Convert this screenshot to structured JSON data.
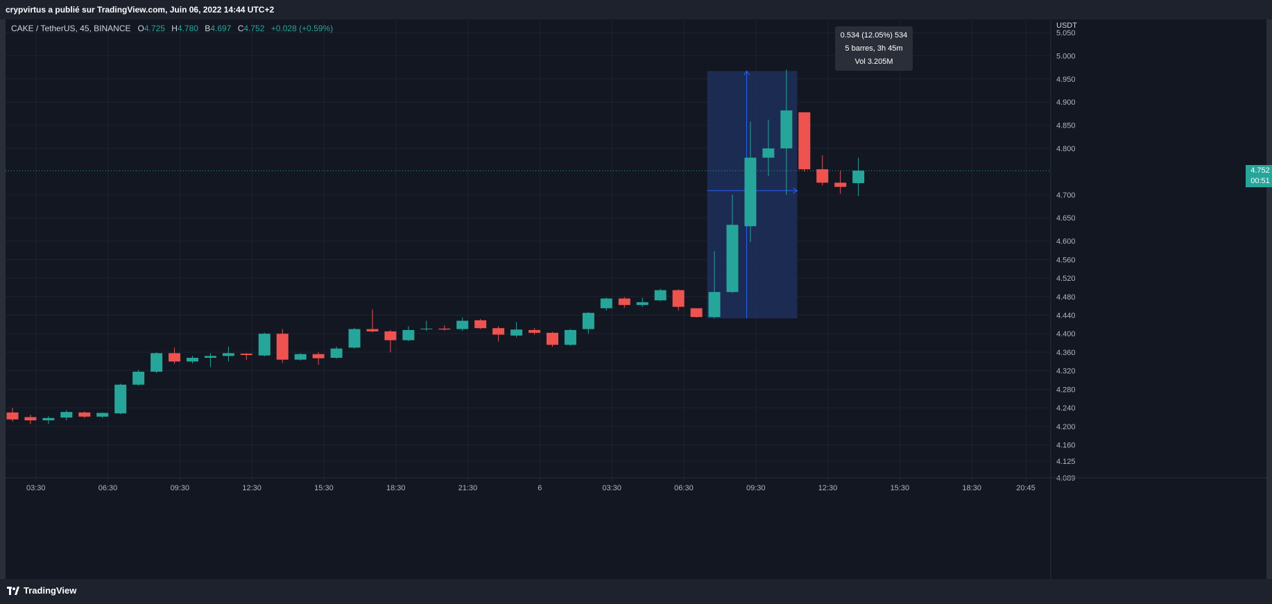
{
  "header": {
    "published_line": "crypvirtus a publié sur TradingView.com, Juin 06, 2022 14:44 UTC+2"
  },
  "legend": {
    "symbol": "CAKE / TetherUS, 45, BINANCE",
    "o_label": "O",
    "o_value": "4.725",
    "h_label": "H",
    "h_value": "4.780",
    "b_label": "B",
    "b_value": "4.697",
    "c_label": "C",
    "c_value": "4.752",
    "change": "+0.028 (+0.59%)"
  },
  "price_axis": {
    "currency": "USDT",
    "current_price": "4.752",
    "countdown": "00:51"
  },
  "measure": {
    "line1": "0.534 (12.05%) 534",
    "line2": "5 barres, 3h 45m",
    "line3": "Vol 3.205M"
  },
  "footer": {
    "brand": "TradingView"
  },
  "colors": {
    "up": "#26a69a",
    "down": "#ef5350",
    "background": "#131722",
    "measure_fill": "#1e2f5a",
    "measure_line": "#2962ff"
  },
  "chart_data": {
    "type": "candlestick",
    "ylim": [
      4.089,
      5.05
    ],
    "y_ticks": [
      5.05,
      5.0,
      4.95,
      4.9,
      4.85,
      4.8,
      4.7,
      4.65,
      4.6,
      4.56,
      4.52,
      4.48,
      4.44,
      4.4,
      4.36,
      4.32,
      4.28,
      4.24,
      4.2,
      4.16,
      4.125,
      4.089
    ],
    "y_tick_labels": [
      "5.050",
      "5.000",
      "4.950",
      "4.900",
      "4.850",
      "4.800",
      "4.700",
      "4.650",
      "4.600",
      "4.560",
      "4.520",
      "4.480",
      "4.440",
      "4.400",
      "4.360",
      "4.320",
      "4.280",
      "4.240",
      "4.200",
      "4.160",
      "4.125",
      "4.089"
    ],
    "x_ticks": [
      {
        "label": "03:30",
        "index": 1.3
      },
      {
        "label": "06:30",
        "index": 5.3
      },
      {
        "label": "09:30",
        "index": 9.3
      },
      {
        "label": "12:30",
        "index": 13.3
      },
      {
        "label": "15:30",
        "index": 17.3
      },
      {
        "label": "18:30",
        "index": 21.3
      },
      {
        "label": "21:30",
        "index": 25.3
      },
      {
        "label": "6",
        "index": 29.3
      },
      {
        "label": "03:30",
        "index": 33.3
      },
      {
        "label": "06:30",
        "index": 37.3
      },
      {
        "label": "09:30",
        "index": 41.3
      },
      {
        "label": "12:30",
        "index": 45.3
      },
      {
        "label": "15:30",
        "index": 49.3
      },
      {
        "label": "18:30",
        "index": 53.3
      },
      {
        "label": "20:45",
        "index": 56.3
      }
    ],
    "candles": [
      {
        "o": 4.23,
        "h": 4.24,
        "l": 4.21,
        "c": 4.215
      },
      {
        "o": 4.22,
        "h": 4.225,
        "l": 4.205,
        "c": 4.213
      },
      {
        "o": 4.213,
        "h": 4.222,
        "l": 4.205,
        "c": 4.218
      },
      {
        "o": 4.219,
        "h": 4.235,
        "l": 4.213,
        "c": 4.231
      },
      {
        "o": 4.23,
        "h": 4.232,
        "l": 4.218,
        "c": 4.221
      },
      {
        "o": 4.221,
        "h": 4.23,
        "l": 4.218,
        "c": 4.229
      },
      {
        "o": 4.228,
        "h": 4.292,
        "l": 4.226,
        "c": 4.29
      },
      {
        "o": 4.29,
        "h": 4.322,
        "l": 4.288,
        "c": 4.318
      },
      {
        "o": 4.318,
        "h": 4.36,
        "l": 4.315,
        "c": 4.358
      },
      {
        "o": 4.358,
        "h": 4.37,
        "l": 4.335,
        "c": 4.34
      },
      {
        "o": 4.34,
        "h": 4.352,
        "l": 4.336,
        "c": 4.348
      },
      {
        "o": 4.348,
        "h": 4.358,
        "l": 4.328,
        "c": 4.352
      },
      {
        "o": 4.352,
        "h": 4.372,
        "l": 4.34,
        "c": 4.358
      },
      {
        "o": 4.357,
        "h": 4.358,
        "l": 4.343,
        "c": 4.354
      },
      {
        "o": 4.353,
        "h": 4.402,
        "l": 4.351,
        "c": 4.4
      },
      {
        "o": 4.4,
        "h": 4.41,
        "l": 4.337,
        "c": 4.344
      },
      {
        "o": 4.344,
        "h": 4.358,
        "l": 4.342,
        "c": 4.356
      },
      {
        "o": 4.356,
        "h": 4.36,
        "l": 4.333,
        "c": 4.347
      },
      {
        "o": 4.348,
        "h": 4.372,
        "l": 4.346,
        "c": 4.368
      },
      {
        "o": 4.37,
        "h": 4.413,
        "l": 4.368,
        "c": 4.41
      },
      {
        "o": 4.41,
        "h": 4.452,
        "l": 4.403,
        "c": 4.405
      },
      {
        "o": 4.405,
        "h": 4.408,
        "l": 4.36,
        "c": 4.386
      },
      {
        "o": 4.386,
        "h": 4.416,
        "l": 4.384,
        "c": 4.408
      },
      {
        "o": 4.41,
        "h": 4.428,
        "l": 4.406,
        "c": 4.411
      },
      {
        "o": 4.411,
        "h": 4.418,
        "l": 4.407,
        "c": 4.409
      },
      {
        "o": 4.41,
        "h": 4.435,
        "l": 4.406,
        "c": 4.428
      },
      {
        "o": 4.429,
        "h": 4.432,
        "l": 4.41,
        "c": 4.412
      },
      {
        "o": 4.412,
        "h": 4.416,
        "l": 4.383,
        "c": 4.398
      },
      {
        "o": 4.396,
        "h": 4.425,
        "l": 4.392,
        "c": 4.409
      },
      {
        "o": 4.408,
        "h": 4.412,
        "l": 4.398,
        "c": 4.402
      },
      {
        "o": 4.402,
        "h": 4.404,
        "l": 4.372,
        "c": 4.376
      },
      {
        "o": 4.376,
        "h": 4.41,
        "l": 4.374,
        "c": 4.408
      },
      {
        "o": 4.41,
        "h": 4.447,
        "l": 4.4,
        "c": 4.445
      },
      {
        "o": 4.455,
        "h": 4.478,
        "l": 4.45,
        "c": 4.476
      },
      {
        "o": 4.476,
        "h": 4.479,
        "l": 4.456,
        "c": 4.462
      },
      {
        "o": 4.462,
        "h": 4.478,
        "l": 4.458,
        "c": 4.468
      },
      {
        "o": 4.472,
        "h": 4.497,
        "l": 4.47,
        "c": 4.494
      },
      {
        "o": 4.494,
        "h": 4.496,
        "l": 4.45,
        "c": 4.458
      },
      {
        "o": 4.455,
        "h": 4.455,
        "l": 4.435,
        "c": 4.436
      },
      {
        "o": 4.436,
        "h": 4.578,
        "l": 4.433,
        "c": 4.49
      },
      {
        "o": 4.49,
        "h": 4.7,
        "l": 4.488,
        "c": 4.635
      },
      {
        "o": 4.632,
        "h": 4.858,
        "l": 4.598,
        "c": 4.78
      },
      {
        "o": 4.78,
        "h": 4.862,
        "l": 4.74,
        "c": 4.8
      },
      {
        "o": 4.8,
        "h": 4.97,
        "l": 4.7,
        "c": 4.882
      },
      {
        "o": 4.878,
        "h": 4.878,
        "l": 4.75,
        "c": 4.755
      },
      {
        "o": 4.755,
        "h": 4.785,
        "l": 4.72,
        "c": 4.726
      },
      {
        "o": 4.726,
        "h": 4.752,
        "l": 4.702,
        "c": 4.717
      },
      {
        "o": 4.725,
        "h": 4.78,
        "l": 4.697,
        "c": 4.752
      }
    ],
    "current_price": 4.752,
    "measure_range": {
      "from_index": 38.6,
      "to_index": 43.6,
      "low": 4.433,
      "high": 4.967
    }
  }
}
